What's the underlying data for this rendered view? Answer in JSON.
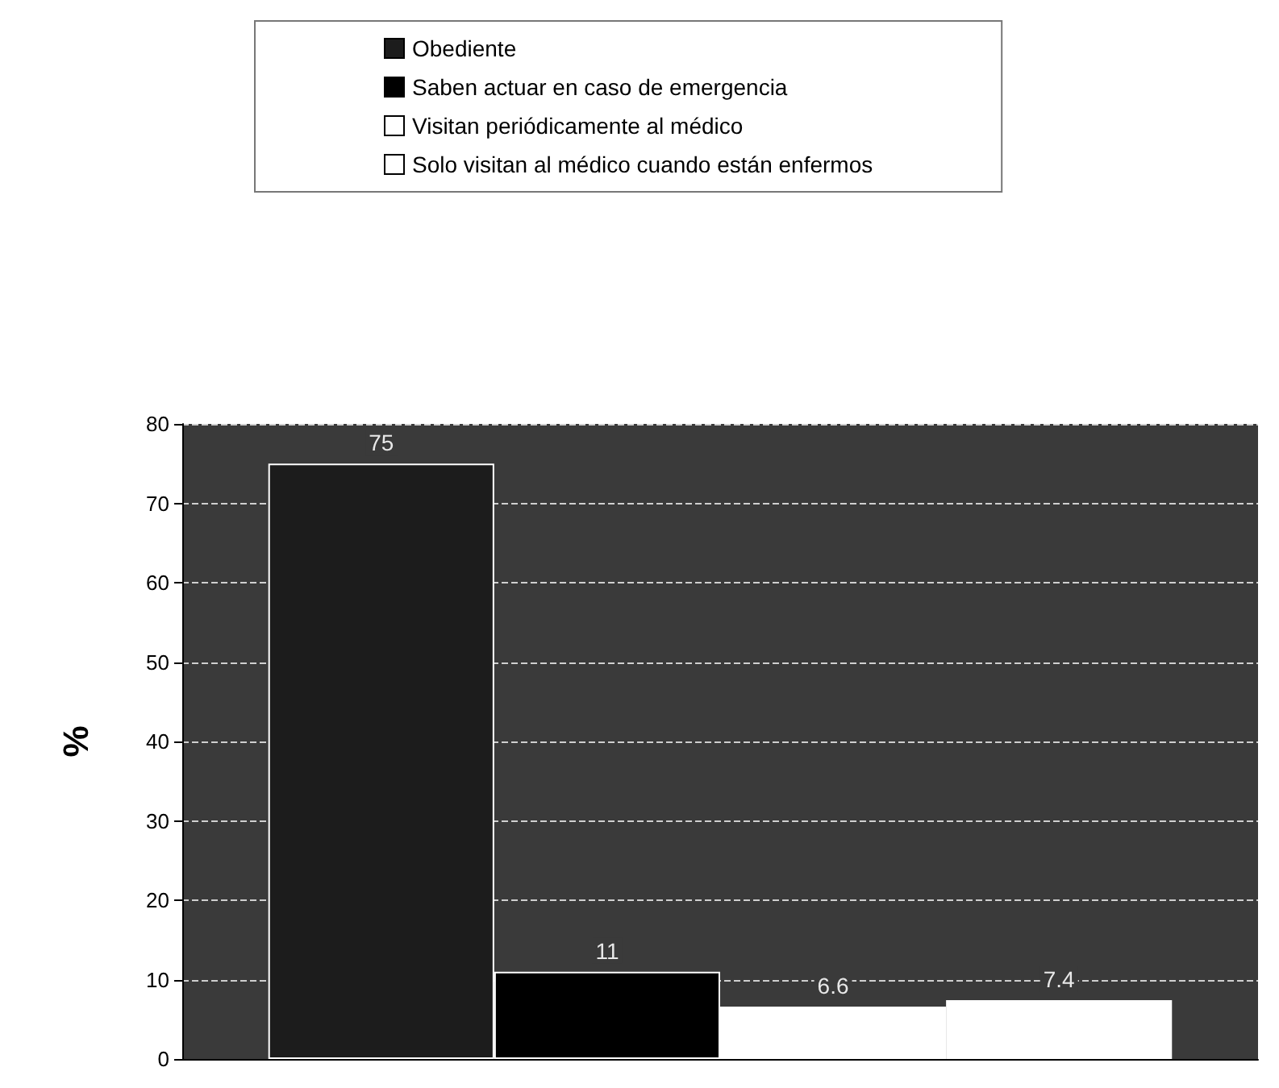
{
  "chart_data": {
    "type": "bar",
    "ylabel": "%",
    "categories": [
      null
    ],
    "series": [
      {
        "name": "Obediente",
        "color": "#1c1c1c",
        "values": [
          75
        ]
      },
      {
        "name": "Saben actuar en caso de emergencia",
        "color": "#000000",
        "values": [
          11
        ]
      },
      {
        "name": "Visitan periódicamente al médico",
        "color": "#ffffff",
        "values": [
          6.6
        ]
      },
      {
        "name": "Solo visitan al médico cuando están enfermos",
        "color": "#ffffff",
        "values": [
          7.4
        ]
      }
    ],
    "ylim": [
      0,
      80
    ],
    "yticks": [
      0,
      10,
      20,
      30,
      40,
      50,
      60,
      70,
      80
    ],
    "grid": "y",
    "legend": "top",
    "data_labels": true
  }
}
